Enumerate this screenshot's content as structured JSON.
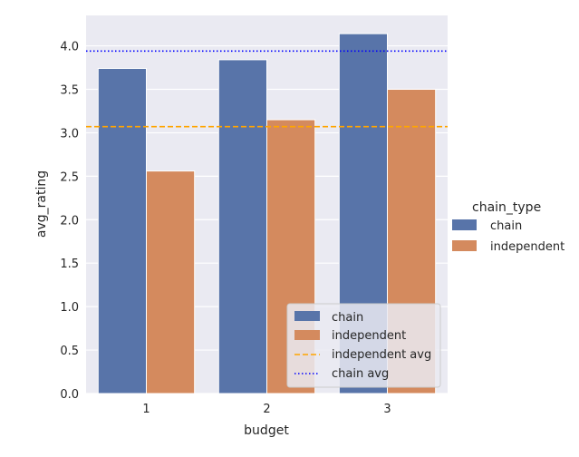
{
  "chart_data": {
    "type": "bar",
    "xlabel": "budget",
    "ylabel": "avg_rating",
    "categories": [
      "1",
      "2",
      "3"
    ],
    "series": [
      {
        "name": "chain",
        "values": [
          3.74,
          3.84,
          4.14
        ],
        "color": "#5874a9"
      },
      {
        "name": "independent",
        "values": [
          2.56,
          3.15,
          3.5
        ],
        "color": "#d48a5e"
      }
    ],
    "ylim": [
      0,
      4.35
    ],
    "yticks": [
      0.0,
      0.5,
      1.0,
      1.5,
      2.0,
      2.5,
      3.0,
      3.5,
      4.0
    ],
    "ytick_labels": [
      "0.0",
      "0.5",
      "1.0",
      "1.5",
      "2.0",
      "2.5",
      "3.0",
      "3.5",
      "4.0"
    ],
    "reference_lines": [
      {
        "name": "independent avg",
        "value": 3.07,
        "color": "#ffa500",
        "style": "dashed"
      },
      {
        "name": "chain avg",
        "value": 3.94,
        "color": "#0000ff",
        "style": "dotted"
      }
    ],
    "grid": true,
    "background": "#eaeaf2",
    "outer_legend": {
      "title": "chain_type",
      "entries": [
        "chain",
        "independent"
      ],
      "placement": "right"
    },
    "inner_legend": {
      "entries": [
        "chain",
        "independent",
        "independent avg",
        "chain avg"
      ],
      "placement": "lower-right"
    }
  }
}
